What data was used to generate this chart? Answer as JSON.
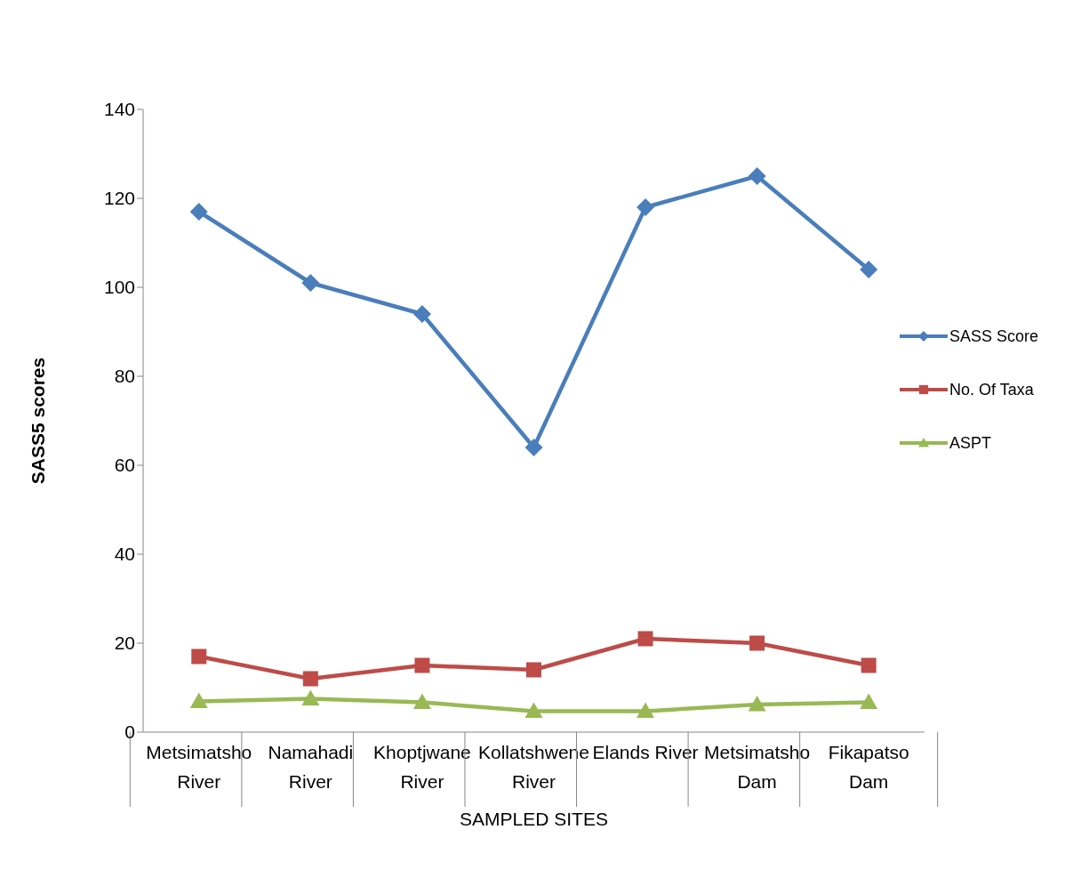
{
  "chart_data": {
    "type": "line",
    "ylabel": "SASS5 scores",
    "xlabel": "SAMPLED SITES",
    "categories": [
      "Metsimatsho River",
      "Namahadi River",
      "Khoptjwane River",
      "Kollatshwene River",
      "Elands River",
      "Metsimatsho Dam",
      "Fikapatso Dam"
    ],
    "series": [
      {
        "name": "SASS Score",
        "color": "#4a7ebb",
        "marker": "diamond",
        "values": [
          117,
          101,
          94,
          64,
          118,
          125,
          104
        ]
      },
      {
        "name": "No. Of Taxa",
        "color": "#be4b48",
        "marker": "square",
        "values": [
          17,
          12,
          15,
          14,
          21,
          20,
          15
        ]
      },
      {
        "name": "ASPT",
        "color": "#98b954",
        "marker": "triangle",
        "values": [
          6.9,
          7.5,
          6.7,
          4.7,
          4.7,
          6.2,
          6.7
        ]
      }
    ],
    "ylim": [
      0,
      140
    ],
    "yticks": [
      0,
      20,
      40,
      60,
      80,
      100,
      120,
      140
    ],
    "grid": false,
    "legend": "right"
  }
}
